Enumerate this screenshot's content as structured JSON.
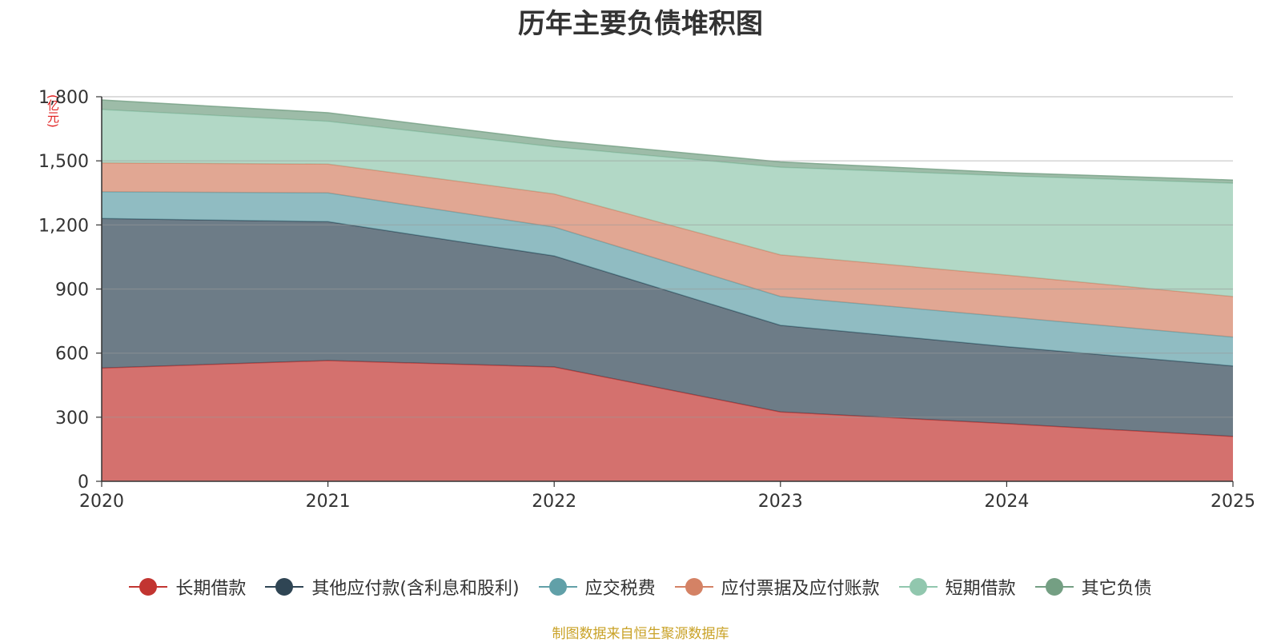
{
  "chart_data": {
    "type": "area",
    "stacked": true,
    "title": "历年主要负债堆积图",
    "unit_label": "(亿元)",
    "source_note": "制图数据来自恒生聚源数据库",
    "x": [
      "2020",
      "2021",
      "2022",
      "2023",
      "2024",
      "2025"
    ],
    "ylim": [
      0,
      1800
    ],
    "yticks": [
      0,
      300,
      600,
      900,
      1200,
      1500,
      1800
    ],
    "ytick_labels": [
      "0",
      "300",
      "600",
      "900",
      "1,200",
      "1,500",
      "1,800"
    ],
    "grid": true,
    "legend_position": "bottom",
    "series": [
      {
        "name": "长期借款",
        "color": "#c23531",
        "values": [
          530,
          565,
          535,
          325,
          270,
          210
        ]
      },
      {
        "name": "其他应付款(含利息和股利)",
        "color": "#2f4554",
        "values": [
          700,
          650,
          520,
          405,
          360,
          330
        ]
      },
      {
        "name": "应交税费",
        "color": "#61a0a8",
        "values": [
          125,
          135,
          135,
          135,
          140,
          135
        ]
      },
      {
        "name": "应付票据及应付账款",
        "color": "#d48265",
        "values": [
          135,
          135,
          155,
          195,
          195,
          190
        ]
      },
      {
        "name": "短期借款",
        "color": "#91c7ae",
        "values": [
          250,
          200,
          220,
          410,
          465,
          530
        ]
      },
      {
        "name": "其它负债",
        "color": "#749f83",
        "values": [
          45,
          40,
          30,
          25,
          15,
          15
        ]
      }
    ]
  }
}
